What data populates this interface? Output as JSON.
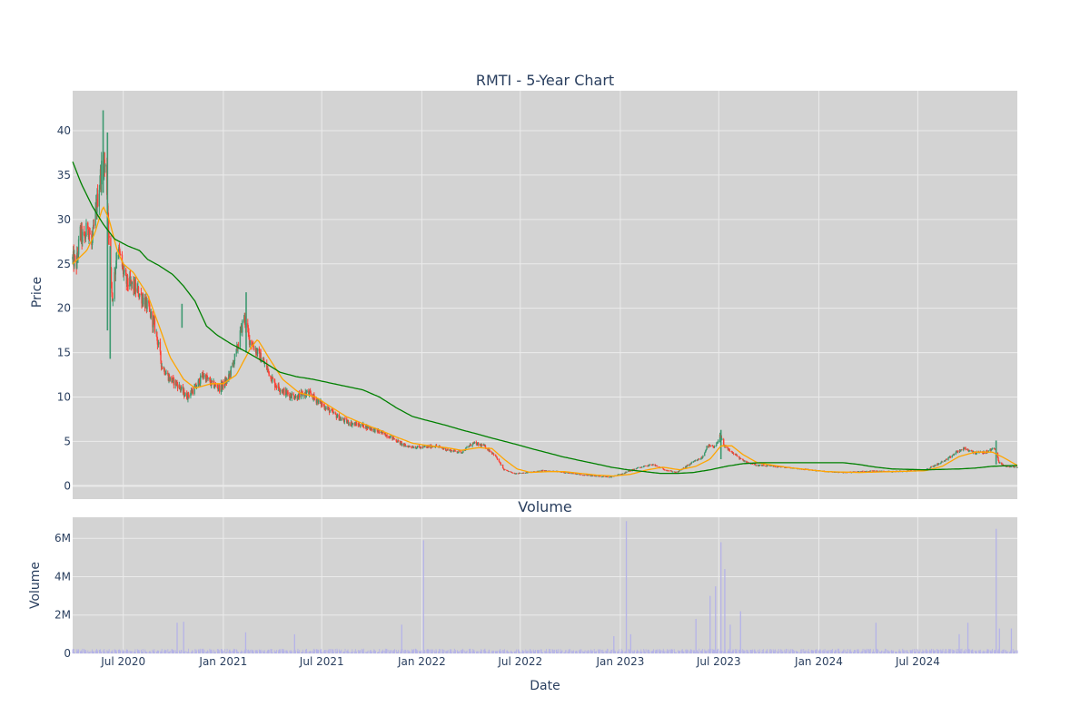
{
  "chart_data": [
    {
      "type": "candlestick",
      "title": "RMTI - 5-Year Chart",
      "ylabel": "Price",
      "xlabel": "",
      "x_range": [
        "2020-03-30",
        "2024-12-31"
      ],
      "ylim": [
        -1.5,
        44.5
      ],
      "y_ticks": [
        0,
        5,
        10,
        15,
        20,
        25,
        30,
        35,
        40
      ],
      "x_ticks": [
        "2020-07-01",
        "2021-01-01",
        "2021-07-01",
        "2022-01-01",
        "2022-07-01",
        "2023-01-01",
        "2023-07-01",
        "2024-01-01",
        "2024-07-01"
      ],
      "grid": true,
      "colors": {
        "plot_bg": "#d3d3d3",
        "grid": "#ebebeb",
        "increasing": "#3d9970",
        "decreasing": "#ff4136",
        "ma_short": "#ffa500",
        "ma_long": "#008000"
      },
      "price_path": [
        [
          "2020-03-30",
          25.5
        ],
        [
          "2020-04-06",
          25.0
        ],
        [
          "2020-04-13",
          28.5
        ],
        [
          "2020-04-20",
          27.5
        ],
        [
          "2020-04-27",
          29.5
        ],
        [
          "2020-05-04",
          27.0
        ],
        [
          "2020-05-11",
          30.5
        ],
        [
          "2020-05-18",
          34.0
        ],
        [
          "2020-05-25",
          37.0
        ],
        [
          "2020-05-31",
          35.0
        ],
        [
          "2020-06-06",
          26.0
        ],
        [
          "2020-06-11",
          21.0
        ],
        [
          "2020-06-20",
          27.0
        ],
        [
          "2020-06-28",
          25.0
        ],
        [
          "2020-07-05",
          23.0
        ],
        [
          "2020-07-19",
          22.5
        ],
        [
          "2020-08-02",
          21.5
        ],
        [
          "2020-08-16",
          20.0
        ],
        [
          "2020-08-30",
          17.5
        ],
        [
          "2020-09-10",
          13.5
        ],
        [
          "2020-09-25",
          12.0
        ],
        [
          "2020-10-08",
          11.5
        ],
        [
          "2020-10-25",
          10.0
        ],
        [
          "2020-11-10",
          11.0
        ],
        [
          "2020-11-25",
          12.5
        ],
        [
          "2020-12-10",
          11.5
        ],
        [
          "2020-12-25",
          11.0
        ],
        [
          "2021-01-10",
          12.0
        ],
        [
          "2021-01-25",
          15.0
        ],
        [
          "2021-02-08",
          19.0
        ],
        [
          "2021-02-18",
          16.5
        ],
        [
          "2021-03-05",
          15.0
        ],
        [
          "2021-03-20",
          13.5
        ],
        [
          "2021-04-05",
          11.5
        ],
        [
          "2021-04-25",
          10.5
        ],
        [
          "2021-05-15",
          10.0
        ],
        [
          "2021-06-05",
          10.5
        ],
        [
          "2021-06-25",
          9.5
        ],
        [
          "2021-07-15",
          8.5
        ],
        [
          "2021-08-05",
          7.5
        ],
        [
          "2021-08-25",
          7.0
        ],
        [
          "2021-09-15",
          6.8
        ],
        [
          "2021-10-10",
          6.2
        ],
        [
          "2021-11-05",
          5.5
        ],
        [
          "2021-12-01",
          4.5
        ],
        [
          "2021-12-31",
          4.3
        ],
        [
          "2022-01-25",
          4.5
        ],
        [
          "2022-02-20",
          4.0
        ],
        [
          "2022-03-15",
          3.8
        ],
        [
          "2022-04-05",
          4.8
        ],
        [
          "2022-04-25",
          4.5
        ],
        [
          "2022-05-15",
          3.5
        ],
        [
          "2022-06-01",
          1.8
        ],
        [
          "2022-06-20",
          1.4
        ],
        [
          "2022-07-15",
          1.5
        ],
        [
          "2022-08-10",
          1.7
        ],
        [
          "2022-09-10",
          1.6
        ],
        [
          "2022-10-15",
          1.3
        ],
        [
          "2022-11-15",
          1.1
        ],
        [
          "2022-12-15",
          1.0
        ],
        [
          "2023-01-10",
          1.5
        ],
        [
          "2023-02-01",
          2.0
        ],
        [
          "2023-03-01",
          2.4
        ],
        [
          "2023-03-25",
          1.8
        ],
        [
          "2023-04-15",
          1.5
        ],
        [
          "2023-05-10",
          2.5
        ],
        [
          "2023-06-01",
          3.2
        ],
        [
          "2023-06-10",
          4.5
        ],
        [
          "2023-06-25",
          4.3
        ],
        [
          "2023-07-03",
          5.8
        ],
        [
          "2023-07-10",
          4.5
        ],
        [
          "2023-07-25",
          3.8
        ],
        [
          "2023-08-15",
          2.8
        ],
        [
          "2023-09-10",
          2.3
        ],
        [
          "2023-10-10",
          2.2
        ],
        [
          "2023-11-15",
          2.0
        ],
        [
          "2023-12-15",
          1.8
        ],
        [
          "2024-01-15",
          1.6
        ],
        [
          "2024-02-15",
          1.5
        ],
        [
          "2024-03-15",
          1.6
        ],
        [
          "2024-04-15",
          1.7
        ],
        [
          "2024-05-15",
          1.6
        ],
        [
          "2024-06-15",
          1.7
        ],
        [
          "2024-07-15",
          1.8
        ],
        [
          "2024-08-05",
          2.4
        ],
        [
          "2024-08-25",
          3.0
        ],
        [
          "2024-09-10",
          3.8
        ],
        [
          "2024-09-25",
          4.2
        ],
        [
          "2024-10-15",
          3.7
        ],
        [
          "2024-11-05",
          3.8
        ],
        [
          "2024-11-20",
          4.3
        ],
        [
          "2024-11-27",
          2.6
        ],
        [
          "2024-12-10",
          2.2
        ],
        [
          "2024-12-31",
          2.1
        ]
      ],
      "ma_short_path": [
        [
          "2020-03-30",
          25.0
        ],
        [
          "2020-04-25",
          26.5
        ],
        [
          "2020-05-10",
          28.5
        ],
        [
          "2020-05-25",
          31.5
        ],
        [
          "2020-06-05",
          30.0
        ],
        [
          "2020-06-20",
          26.5
        ],
        [
          "2020-07-01",
          25.0
        ],
        [
          "2020-07-20",
          24.0
        ],
        [
          "2020-08-15",
          21.5
        ],
        [
          "2020-09-05",
          18.0
        ],
        [
          "2020-09-25",
          14.5
        ],
        [
          "2020-10-20",
          12.0
        ],
        [
          "2020-11-10",
          11.0
        ],
        [
          "2020-12-10",
          11.5
        ],
        [
          "2021-01-01",
          11.5
        ],
        [
          "2021-01-25",
          12.5
        ],
        [
          "2021-02-20",
          15.5
        ],
        [
          "2021-03-05",
          16.5
        ],
        [
          "2021-03-25",
          14.5
        ],
        [
          "2021-04-20",
          12.0
        ],
        [
          "2021-05-20",
          10.5
        ],
        [
          "2021-06-20",
          10.0
        ],
        [
          "2021-07-15",
          9.0
        ],
        [
          "2021-08-15",
          7.8
        ],
        [
          "2021-09-15",
          7.0
        ],
        [
          "2021-10-15",
          6.3
        ],
        [
          "2021-11-15",
          5.5
        ],
        [
          "2021-12-15",
          4.8
        ],
        [
          "2022-01-15",
          4.5
        ],
        [
          "2022-02-15",
          4.3
        ],
        [
          "2022-03-15",
          4.0
        ],
        [
          "2022-04-15",
          4.3
        ],
        [
          "2022-05-10",
          4.2
        ],
        [
          "2022-06-01",
          3.0
        ],
        [
          "2022-06-25",
          1.9
        ],
        [
          "2022-07-20",
          1.5
        ],
        [
          "2022-08-20",
          1.6
        ],
        [
          "2022-09-20",
          1.6
        ],
        [
          "2022-10-20",
          1.4
        ],
        [
          "2022-11-20",
          1.2
        ],
        [
          "2022-12-20",
          1.1
        ],
        [
          "2023-01-20",
          1.3
        ],
        [
          "2023-02-20",
          1.8
        ],
        [
          "2023-03-20",
          2.1
        ],
        [
          "2023-04-20",
          1.8
        ],
        [
          "2023-05-20",
          2.2
        ],
        [
          "2023-06-15",
          3.0
        ],
        [
          "2023-07-05",
          4.5
        ],
        [
          "2023-07-25",
          4.5
        ],
        [
          "2023-08-15",
          3.5
        ],
        [
          "2023-09-10",
          2.6
        ],
        [
          "2023-10-10",
          2.3
        ],
        [
          "2023-11-15",
          2.0
        ],
        [
          "2023-12-15",
          1.8
        ],
        [
          "2024-01-15",
          1.6
        ],
        [
          "2024-03-15",
          1.5
        ],
        [
          "2024-05-15",
          1.6
        ],
        [
          "2024-07-15",
          1.7
        ],
        [
          "2024-08-15",
          2.2
        ],
        [
          "2024-09-15",
          3.3
        ],
        [
          "2024-10-15",
          3.8
        ],
        [
          "2024-11-15",
          3.8
        ],
        [
          "2024-12-05",
          3.2
        ],
        [
          "2024-12-31",
          2.3
        ]
      ],
      "ma_long_path": [
        [
          "2020-03-30",
          36.5
        ],
        [
          "2020-04-15",
          34.0
        ],
        [
          "2020-05-05",
          31.5
        ],
        [
          "2020-05-25",
          29.5
        ],
        [
          "2020-06-15",
          27.8
        ],
        [
          "2020-07-10",
          27.0
        ],
        [
          "2020-07-31",
          26.5
        ],
        [
          "2020-08-15",
          25.5
        ],
        [
          "2020-09-05",
          24.8
        ],
        [
          "2020-09-30",
          23.8
        ],
        [
          "2020-10-20",
          22.5
        ],
        [
          "2020-11-10",
          20.8
        ],
        [
          "2020-12-01",
          18.0
        ],
        [
          "2020-12-20",
          17.0
        ],
        [
          "2021-01-15",
          16.0
        ],
        [
          "2021-02-15",
          15.0
        ],
        [
          "2021-03-15",
          14.0
        ],
        [
          "2021-04-15",
          12.8
        ],
        [
          "2021-05-15",
          12.3
        ],
        [
          "2021-06-15",
          12.0
        ],
        [
          "2021-07-15",
          11.6
        ],
        [
          "2021-08-15",
          11.2
        ],
        [
          "2021-09-15",
          10.8
        ],
        [
          "2021-10-15",
          10.0
        ],
        [
          "2021-11-15",
          8.8
        ],
        [
          "2021-12-15",
          7.8
        ],
        [
          "2022-01-15",
          7.3
        ],
        [
          "2022-02-15",
          6.8
        ],
        [
          "2022-03-15",
          6.3
        ],
        [
          "2022-04-15",
          5.8
        ],
        [
          "2022-05-15",
          5.3
        ],
        [
          "2022-06-15",
          4.8
        ],
        [
          "2022-07-15",
          4.3
        ],
        [
          "2022-08-15",
          3.8
        ],
        [
          "2022-09-15",
          3.3
        ],
        [
          "2022-10-15",
          2.9
        ],
        [
          "2022-11-15",
          2.5
        ],
        [
          "2022-12-15",
          2.1
        ],
        [
          "2023-01-15",
          1.8
        ],
        [
          "2023-02-15",
          1.6
        ],
        [
          "2023-03-15",
          1.4
        ],
        [
          "2023-04-15",
          1.4
        ],
        [
          "2023-05-15",
          1.5
        ],
        [
          "2023-06-15",
          1.8
        ],
        [
          "2023-07-15",
          2.2
        ],
        [
          "2023-08-15",
          2.5
        ],
        [
          "2023-09-15",
          2.6
        ],
        [
          "2023-10-15",
          2.6
        ],
        [
          "2023-12-15",
          2.6
        ],
        [
          "2024-02-15",
          2.6
        ],
        [
          "2024-03-15",
          2.4
        ],
        [
          "2024-04-15",
          2.1
        ],
        [
          "2024-05-15",
          1.9
        ],
        [
          "2024-07-15",
          1.8
        ],
        [
          "2024-09-15",
          1.9
        ],
        [
          "2024-10-15",
          2.0
        ],
        [
          "2024-11-15",
          2.2
        ],
        [
          "2024-12-31",
          2.3
        ]
      ],
      "spikes": [
        {
          "date": "2020-05-25",
          "high": 42.3,
          "low": 33.0
        },
        {
          "date": "2020-06-02",
          "high": 39.8,
          "low": 17.5
        },
        {
          "date": "2020-06-07",
          "high": 27.0,
          "low": 14.3
        },
        {
          "date": "2020-10-17",
          "high": 20.5,
          "low": 17.8
        },
        {
          "date": "2021-02-12",
          "high": 21.8,
          "low": 15.0
        },
        {
          "date": "2023-07-05",
          "high": 6.3,
          "low": 3.0
        },
        {
          "date": "2024-11-22",
          "high": 5.1,
          "low": 2.4
        }
      ]
    },
    {
      "type": "bar",
      "title": "Volume",
      "ylabel": "Volume",
      "xlabel": "Date",
      "x_range": [
        "2020-03-30",
        "2024-12-31"
      ],
      "ylim": [
        0,
        7100000
      ],
      "y_ticks": [
        0,
        2000000,
        4000000,
        6000000
      ],
      "y_tick_labels": [
        "0",
        "2M",
        "4M",
        "6M"
      ],
      "x_ticks": [
        "2020-07-01",
        "2021-01-01",
        "2021-07-01",
        "2022-01-01",
        "2022-07-01",
        "2023-01-01",
        "2023-07-01",
        "2024-01-01",
        "2024-07-01"
      ],
      "x_tick_labels": [
        "Jul 2020",
        "Jan 2021",
        "Jul 2021",
        "Jan 2022",
        "Jul 2022",
        "Jan 2023",
        "Jul 2023",
        "Jan 2024",
        "Jul 2024"
      ],
      "grid": true,
      "colors": {
        "plot_bg": "#d3d3d3",
        "bar": "#b5b3e8"
      },
      "baseline": 130000,
      "spikes": [
        {
          "date": "2020-10-08",
          "value": 1600000
        },
        {
          "date": "2020-10-20",
          "value": 1650000
        },
        {
          "date": "2021-02-11",
          "value": 1100000
        },
        {
          "date": "2021-05-12",
          "value": 1000000
        },
        {
          "date": "2021-11-25",
          "value": 1500000
        },
        {
          "date": "2022-01-04",
          "value": 5900000
        },
        {
          "date": "2022-12-20",
          "value": 900000
        },
        {
          "date": "2023-01-12",
          "value": 6900000
        },
        {
          "date": "2023-01-20",
          "value": 1000000
        },
        {
          "date": "2023-05-20",
          "value": 1800000
        },
        {
          "date": "2023-06-15",
          "value": 3000000
        },
        {
          "date": "2023-06-25",
          "value": 3500000
        },
        {
          "date": "2023-07-05",
          "value": 5800000
        },
        {
          "date": "2023-07-12",
          "value": 4400000
        },
        {
          "date": "2023-07-22",
          "value": 1500000
        },
        {
          "date": "2023-08-10",
          "value": 2200000
        },
        {
          "date": "2024-04-15",
          "value": 1600000
        },
        {
          "date": "2024-09-15",
          "value": 1000000
        },
        {
          "date": "2024-10-01",
          "value": 1600000
        },
        {
          "date": "2024-11-22",
          "value": 6500000
        },
        {
          "date": "2024-11-28",
          "value": 1300000
        },
        {
          "date": "2024-12-20",
          "value": 1300000
        }
      ]
    }
  ]
}
